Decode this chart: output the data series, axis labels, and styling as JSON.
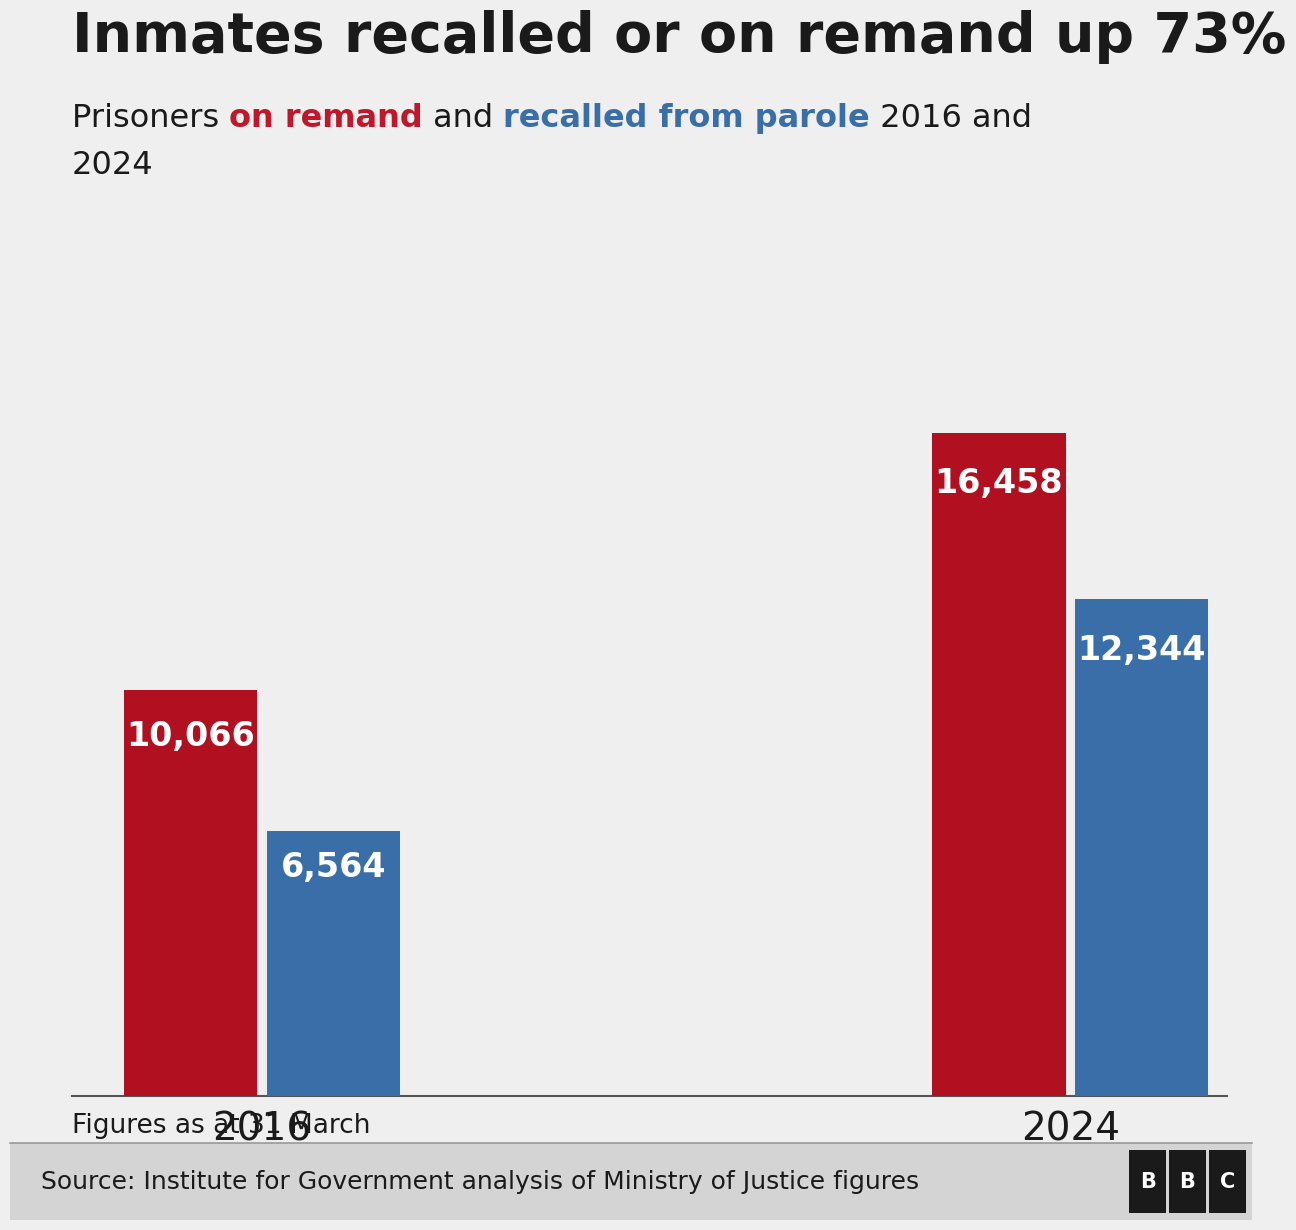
{
  "title": "Inmates recalled or on remand up 73%",
  "categories": [
    "2016",
    "2024"
  ],
  "remand_values": [
    10066,
    16458
  ],
  "recalled_values": [
    6564,
    12344
  ],
  "remand_color": "#b01020",
  "recalled_color": "#3a6ea8",
  "background_color": "#efefef",
  "bar_label_color": "#ffffff",
  "footnote": "Figures as at 31 March",
  "source": "Source: Institute for Government analysis of Ministry of Justice figures",
  "ylim": [
    0,
    18500
  ],
  "title_fontsize": 40,
  "subtitle_fontsize": 23,
  "label_fontsize": 24,
  "xtick_fontsize": 28,
  "footnote_fontsize": 19,
  "source_fontsize": 18
}
